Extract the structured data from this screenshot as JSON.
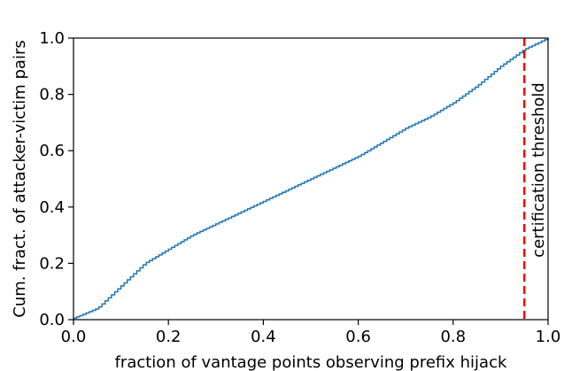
{
  "chart_data": {
    "type": "line",
    "drawstyle": "step",
    "title": "",
    "xlabel": "fraction of vantage points observing prefix hijack",
    "ylabel": "Cum. fract. of attacker-victim pairs",
    "xlim": [
      0.0,
      1.0
    ],
    "ylim": [
      0.0,
      1.0
    ],
    "x_ticks": [
      0.0,
      0.2,
      0.4,
      0.6,
      0.8,
      1.0
    ],
    "x_tick_labels": [
      "0.0",
      "0.2",
      "0.4",
      "0.6",
      "0.8",
      "1.0"
    ],
    "y_ticks": [
      0.0,
      0.2,
      0.4,
      0.6,
      0.8,
      1.0
    ],
    "y_tick_labels": [
      "0.0",
      "0.2",
      "0.4",
      "0.6",
      "0.8",
      "1.0"
    ],
    "grid": false,
    "series": [
      {
        "color": "#1f77b4",
        "x": [
          0.0,
          0.05,
          0.1,
          0.15,
          0.2,
          0.25,
          0.3,
          0.35,
          0.4,
          0.45,
          0.5,
          0.55,
          0.6,
          0.65,
          0.7,
          0.75,
          0.8,
          0.85,
          0.9,
          0.95,
          1.0
        ],
        "y": [
          0.005,
          0.04,
          0.12,
          0.2,
          0.25,
          0.3,
          0.34,
          0.38,
          0.42,
          0.46,
          0.5,
          0.54,
          0.58,
          0.63,
          0.68,
          0.72,
          0.77,
          0.83,
          0.9,
          0.96,
          1.0
        ]
      }
    ],
    "threshold": {
      "x": 0.95,
      "color": "#ff0000",
      "style": "dashed",
      "label": "certification threshold"
    }
  }
}
